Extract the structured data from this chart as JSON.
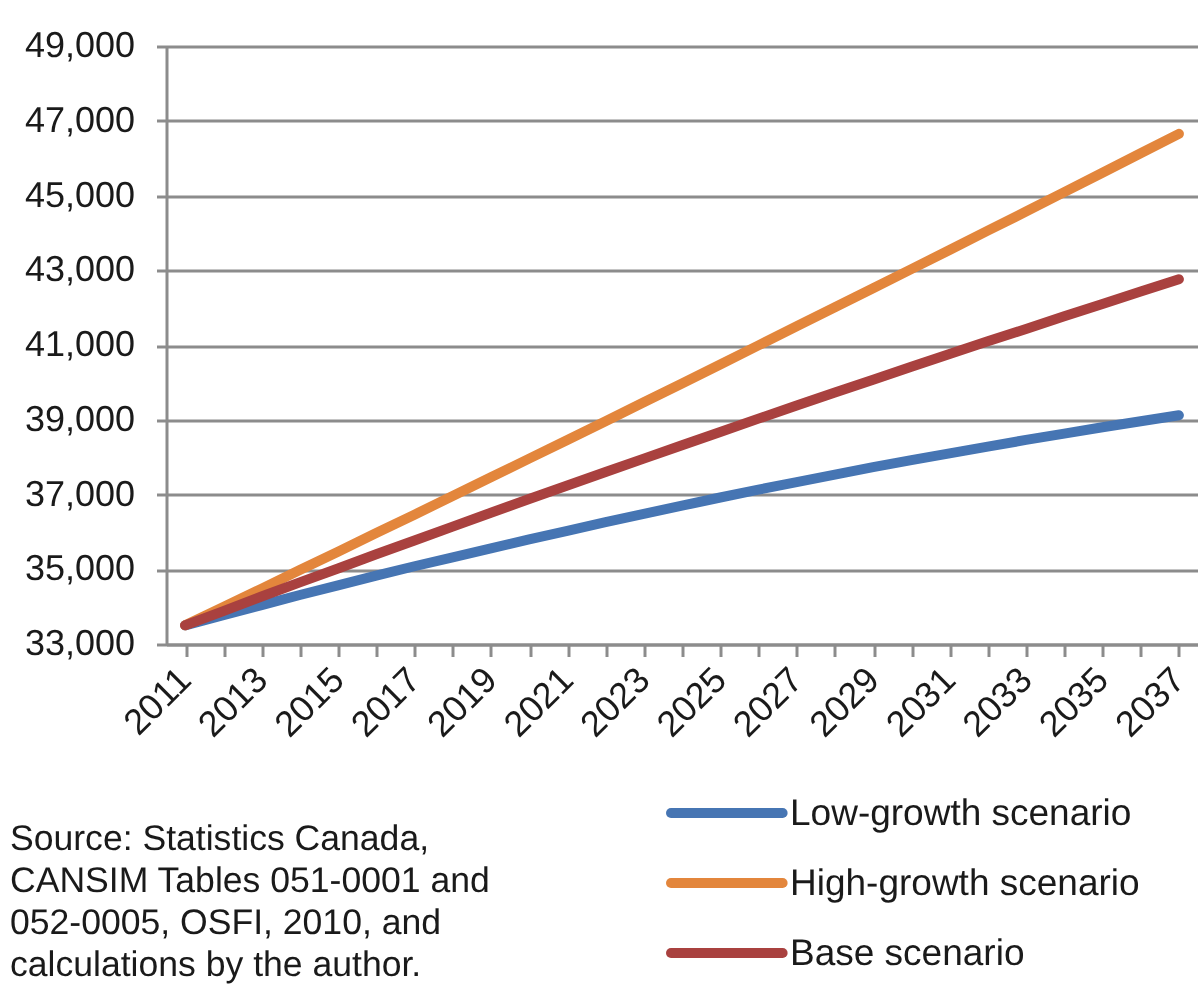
{
  "chart_data": {
    "type": "line",
    "categories": [
      "2011",
      null,
      "2013",
      null,
      "2015",
      null,
      "2017",
      null,
      "2019",
      null,
      "2021",
      null,
      "2023",
      null,
      "2025",
      null,
      "2027",
      null,
      "2029",
      null,
      "2031",
      null,
      "2033",
      null,
      "2035",
      null,
      "2037"
    ],
    "series": [
      {
        "name": "Low-growth scenario",
        "color": "#4675b3",
        "values": [
          33500,
          33770,
          34040,
          34310,
          34570,
          34830,
          35080,
          35320,
          35560,
          35800,
          36030,
          36260,
          36480,
          36700,
          36920,
          37130,
          37330,
          37530,
          37730,
          37920,
          38100,
          38280,
          38460,
          38630,
          38800,
          38960,
          39120
        ]
      },
      {
        "name": "High-growth scenario",
        "color": "#e3863c",
        "values": [
          33500,
          33990,
          34480,
          34980,
          35470,
          35970,
          36460,
          36960,
          37460,
          37960,
          38460,
          38960,
          39470,
          39970,
          40480,
          40990,
          41500,
          42010,
          42520,
          43030,
          43540,
          44060,
          44570,
          45090,
          45610,
          46130,
          46650
        ]
      },
      {
        "name": "Base scenario",
        "color": "#a9413f",
        "values": [
          33500,
          33880,
          34270,
          34650,
          35020,
          35400,
          35770,
          36140,
          36510,
          36880,
          37240,
          37600,
          37960,
          38320,
          38670,
          39030,
          39380,
          39730,
          40070,
          40420,
          40760,
          41100,
          41430,
          41770,
          42100,
          42430,
          42760
        ]
      }
    ],
    "ylim": [
      33000,
      49000
    ],
    "yticks": [
      {
        "value": 33000,
        "label": "33,000"
      },
      {
        "value": 35000,
        "label": "35,000"
      },
      {
        "value": 37000,
        "label": "37,000"
      },
      {
        "value": 39000,
        "label": "39,000"
      },
      {
        "value": 41000,
        "label": "41,000"
      },
      {
        "value": 43000,
        "label": "43,000"
      },
      {
        "value": 45000,
        "label": "45,000"
      },
      {
        "value": 47000,
        "label": "47,000"
      },
      {
        "value": 49000,
        "label": "49,000"
      }
    ],
    "grid": "y",
    "legend": "bottom right",
    "line_style": "solid",
    "annotations": [
      "Source: Statistics Canada, CANSIM Tables 051-0001 and 052-0005, OSFI, 2010, and calculations by the author."
    ]
  }
}
